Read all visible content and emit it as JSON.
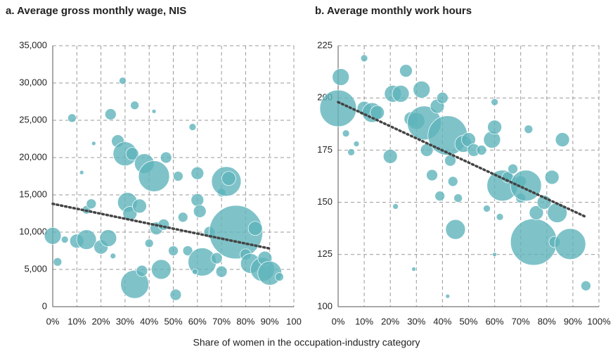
{
  "xlabel": "Share of women in the occupation-industry category",
  "chart_data": [
    {
      "type": "scatter",
      "title": "a. Average gross monthly wage, NIS",
      "color": "#5fb4bb",
      "grid": true,
      "xlim": [
        0,
        100
      ],
      "ylim": [
        0,
        35000
      ],
      "xticks": [
        {
          "value": 0,
          "label": "0%"
        },
        {
          "value": 10,
          "label": "10%"
        },
        {
          "value": 20,
          "label": "20%"
        },
        {
          "value": 30,
          "label": "30%"
        },
        {
          "value": 40,
          "label": "40%"
        },
        {
          "value": 50,
          "label": "50%"
        },
        {
          "value": 60,
          "label": "60%"
        },
        {
          "value": 70,
          "label": "70%"
        },
        {
          "value": 80,
          "label": "80%"
        },
        {
          "value": 90,
          "label": "90%"
        },
        100
      ],
      "yticks": [
        0,
        {
          "value": 5000,
          "label": "5,000"
        },
        {
          "value": 10000,
          "label": "10,000"
        },
        {
          "value": 15000,
          "label": "15,000"
        },
        {
          "value": 20000,
          "label": "20,000"
        },
        {
          "value": 25000,
          "label": "25,000"
        },
        {
          "value": 30000,
          "label": "30,000"
        },
        {
          "value": 35000,
          "label": "35,000"
        }
      ],
      "x": [
        0,
        2,
        5,
        8,
        10,
        14,
        14,
        16,
        17,
        20,
        23,
        24,
        27,
        29,
        30,
        31,
        32,
        33,
        34,
        34,
        36,
        37,
        38,
        40,
        42,
        42,
        43,
        45,
        46,
        47,
        50,
        51,
        52,
        54,
        56,
        58,
        60,
        60,
        61,
        62,
        65,
        68,
        70,
        70,
        72,
        73,
        76,
        80,
        82,
        84,
        87,
        88,
        90,
        94,
        12,
        25,
        59
      ],
      "y": [
        9500,
        6000,
        9000,
        25300,
        8800,
        9000,
        13000,
        13800,
        21900,
        8000,
        9200,
        25800,
        22200,
        30300,
        20500,
        14000,
        12500,
        20500,
        3000,
        27000,
        13500,
        4800,
        19200,
        8500,
        17500,
        26200,
        10500,
        5000,
        11000,
        20000,
        7500,
        1600,
        17500,
        12000,
        7500,
        24100,
        14300,
        17900,
        12800,
        6000,
        10000,
        6500,
        4700,
        15300,
        16800,
        17200,
        10000,
        7000,
        5800,
        10500,
        5000,
        6500,
        4500,
        4000,
        18000,
        6800,
        4700
      ],
      "sizes": [
        12,
        6,
        5,
        6,
        10,
        14,
        6,
        7,
        3,
        10,
        12,
        8,
        9,
        5,
        17,
        14,
        10,
        9,
        20,
        6,
        10,
        8,
        14,
        6,
        22,
        3,
        9,
        14,
        8,
        8,
        7,
        8,
        7,
        7,
        7,
        5,
        9,
        9,
        9,
        20,
        8,
        8,
        8,
        6,
        21,
        10,
        38,
        8,
        14,
        10,
        17,
        10,
        17,
        6,
        3,
        4,
        4
      ],
      "trendline": {
        "x": [
          0,
          90
        ],
        "y": [
          13800,
          7800
        ]
      }
    },
    {
      "type": "scatter",
      "title": "b. Average monthly work hours",
      "color": "#5fb4bb",
      "grid": true,
      "xlim": [
        0,
        100
      ],
      "ylim": [
        100,
        225
      ],
      "xticks": [
        {
          "value": 0,
          "label": "0%"
        },
        {
          "value": 10,
          "label": "10%"
        },
        {
          "value": 20,
          "label": "20%"
        },
        {
          "value": 30,
          "label": "30%"
        },
        {
          "value": 40,
          "label": "40%"
        },
        {
          "value": 50,
          "label": "50%"
        },
        {
          "value": 60,
          "label": "60%"
        },
        {
          "value": 70,
          "label": "70%"
        },
        {
          "value": 80,
          "label": "80%"
        },
        {
          "value": 90,
          "label": "90%"
        },
        {
          "value": 100,
          "label": "100%"
        }
      ],
      "yticks": [
        100,
        125,
        150,
        175,
        200,
        225
      ],
      "x": [
        0,
        1,
        3,
        5,
        7,
        10,
        10,
        13,
        15,
        20,
        21,
        24,
        26,
        28,
        30,
        32,
        33,
        34,
        36,
        38,
        39,
        40,
        42,
        43,
        44,
        45,
        46,
        48,
        50,
        52,
        55,
        57,
        59,
        60,
        60,
        62,
        63,
        65,
        67,
        70,
        70,
        72,
        73,
        75,
        76,
        79,
        82,
        83,
        84,
        86,
        89,
        95,
        42,
        29,
        22,
        60
      ],
      "y": [
        195,
        210,
        183,
        174,
        178,
        219,
        195,
        193,
        193,
        172,
        202,
        202,
        213,
        190,
        189,
        204,
        188,
        175,
        163,
        196,
        153,
        200,
        182,
        170,
        160,
        137,
        152,
        178,
        180,
        175,
        175,
        147,
        180,
        186,
        198,
        143,
        158,
        162,
        166,
        160,
        152,
        158,
        185,
        131,
        145,
        150,
        162,
        131,
        145,
        180,
        130,
        110,
        105,
        118,
        148,
        125
      ],
      "sizes": [
        26,
        12,
        5,
        5,
        4,
        5,
        10,
        14,
        10,
        10,
        12,
        12,
        9,
        10,
        12,
        12,
        24,
        9,
        8,
        10,
        7,
        8,
        28,
        8,
        7,
        14,
        6,
        12,
        10,
        9,
        7,
        5,
        12,
        10,
        5,
        5,
        22,
        8,
        7,
        8,
        7,
        22,
        6,
        33,
        10,
        10,
        10,
        8,
        14,
        10,
        22,
        7,
        3,
        3,
        4,
        3
      ],
      "trendline": {
        "x": [
          0,
          95
        ],
        "y": [
          198,
          143
        ]
      }
    }
  ]
}
